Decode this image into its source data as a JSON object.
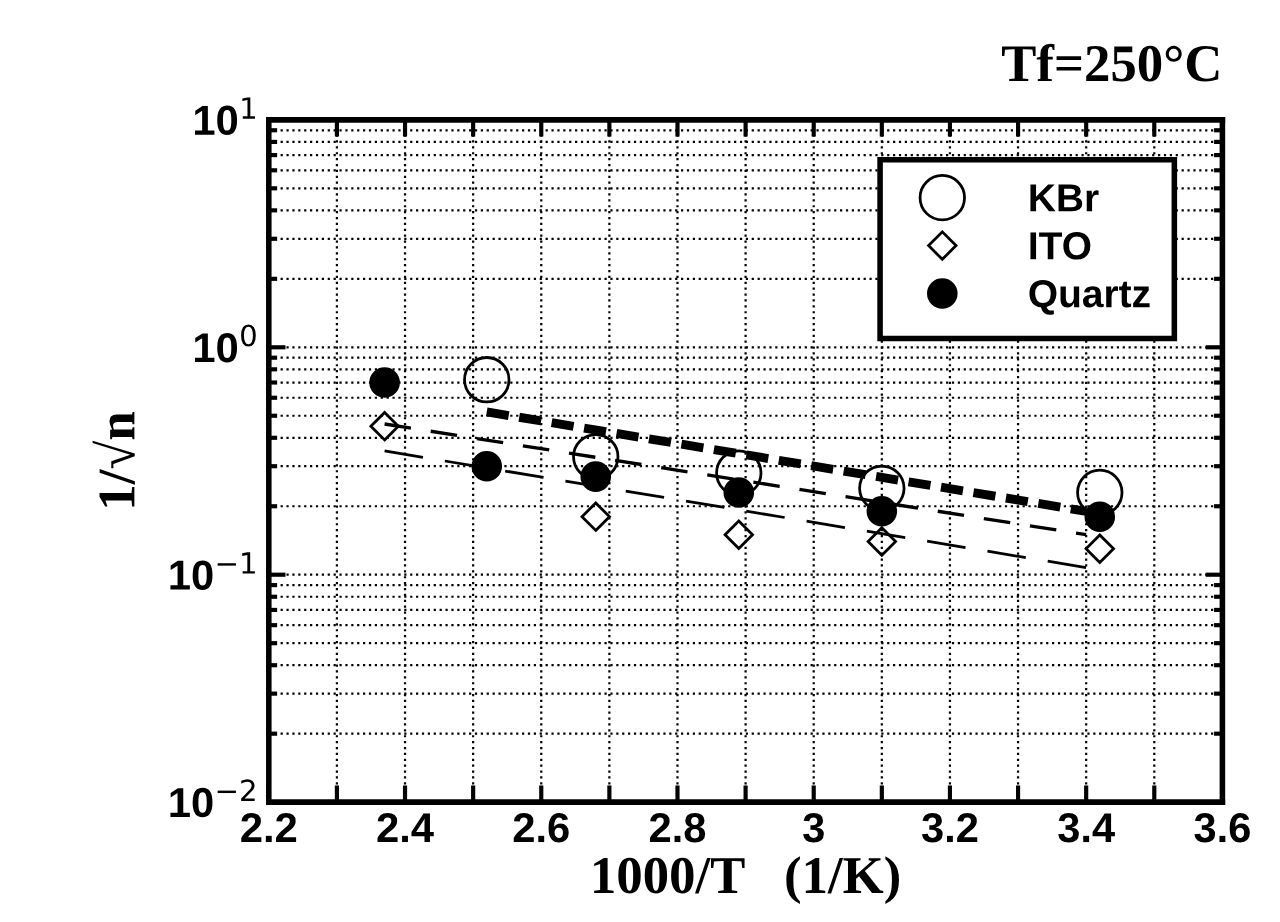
{
  "chart_data": {
    "type": "scatter",
    "title": "Tf=250°C",
    "xlabel": "1000/T   (1/K)",
    "ylabel": "1/√n",
    "log": "y",
    "grid": true,
    "legend": "top right",
    "xlim": [
      2.2,
      3.6
    ],
    "ylim": [
      0.01,
      10
    ],
    "xticks": [
      2.2,
      {
        "value": 2.3,
        "label": null
      },
      2.4,
      {
        "value": 2.5,
        "label": null
      },
      2.6,
      {
        "value": 2.7,
        "label": null
      },
      2.8,
      {
        "value": 2.9,
        "label": null
      },
      3,
      {
        "value": 3.1,
        "label": null
      },
      3.2,
      {
        "value": 3.3,
        "label": null
      },
      3.4,
      {
        "value": 3.5,
        "label": null
      },
      3.6
    ],
    "yticks": [
      {
        "value": 0.01,
        "label": "10$^{−2}$"
      },
      {
        "value": 0.1,
        "label": "10$^{−1}$"
      },
      {
        "value": 1,
        "label": "10$^{0}$"
      },
      {
        "value": 10,
        "label": "10$^{1}$"
      }
    ],
    "series": [
      {
        "name": "KBr",
        "color": "#000000",
        "marker": "circle",
        "x": [
          2.52,
          2.68,
          2.89,
          3.1,
          3.42
        ],
        "values": [
          0.72,
          0.33,
          0.28,
          0.24,
          0.23
        ]
      },
      {
        "name": "ITO",
        "color": "#000000",
        "marker": "diamond",
        "x": [
          2.37,
          2.68,
          2.89,
          3.1,
          3.42
        ],
        "values": [
          0.45,
          0.18,
          0.15,
          0.14,
          0.13
        ]
      },
      {
        "name": "Quartz",
        "color": "#000000",
        "marker": "circle",
        "x": [
          2.37,
          2.52,
          2.68,
          2.89,
          3.1,
          3.42
        ],
        "values": [
          0.7,
          0.3,
          0.27,
          0.23,
          0.19,
          0.18
        ]
      },
      {
        "type": "line",
        "color": "#000000",
        "line_style": "dashed",
        "marker": "none",
        "x": [
          2.52,
          3.4
        ],
        "values": [
          0.52,
          0.19
        ]
      },
      {
        "type": "line",
        "color": "#000000",
        "line_style": "dashed",
        "marker": "none",
        "x": [
          2.37,
          3.4
        ],
        "values": [
          0.46,
          0.15
        ]
      },
      {
        "type": "line",
        "color": "#000000",
        "line_style": "dashed",
        "marker": "none",
        "x": [
          2.37,
          3.42
        ],
        "values": [
          0.35,
          0.105
        ]
      }
    ]
  }
}
